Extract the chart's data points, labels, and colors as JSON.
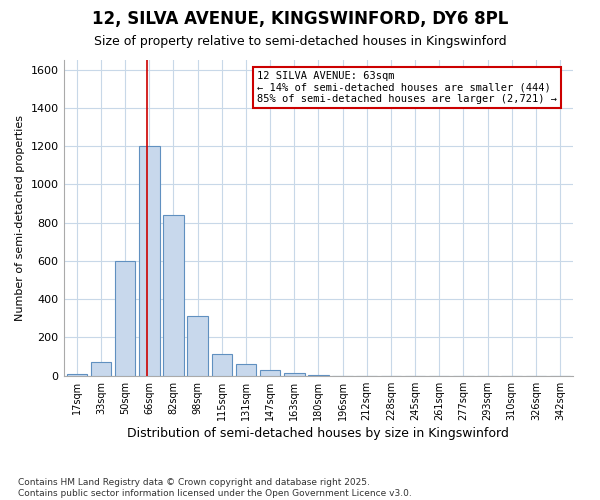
{
  "title1": "12, SILVA AVENUE, KINGSWINFORD, DY6 8PL",
  "title2": "Size of property relative to semi-detached houses in Kingswinford",
  "xlabel": "Distribution of semi-detached houses by size in Kingswinford",
  "ylabel": "Number of semi-detached properties",
  "footnote": "Contains HM Land Registry data © Crown copyright and database right 2025.\nContains public sector information licensed under the Open Government Licence v3.0.",
  "categories": [
    "17sqm",
    "33sqm",
    "50sqm",
    "66sqm",
    "82sqm",
    "98sqm",
    "115sqm",
    "131sqm",
    "147sqm",
    "163sqm",
    "180sqm",
    "196sqm",
    "212sqm",
    "228sqm",
    "245sqm",
    "261sqm",
    "277sqm",
    "293sqm",
    "310sqm",
    "326sqm",
    "342sqm"
  ],
  "bar_values": [
    10,
    70,
    600,
    1200,
    840,
    310,
    115,
    60,
    30,
    15,
    5,
    0,
    0,
    0,
    0,
    0,
    0,
    0,
    0,
    0,
    0
  ],
  "bar_color": "#c8d8ec",
  "bar_edge_color": "#6090c0",
  "bar_edge_width": 0.8,
  "red_line_x": 2.92,
  "annotation_title": "12 SILVA AVENUE: 63sqm",
  "annotation_line1": "← 14% of semi-detached houses are smaller (444)",
  "annotation_line2": "85% of semi-detached houses are larger (2,721) →",
  "annotation_box_color": "#ffffff",
  "annotation_box_edge": "#cc0000",
  "red_line_color": "#cc0000",
  "ylim": [
    0,
    1650
  ],
  "yticks": [
    0,
    200,
    400,
    600,
    800,
    1000,
    1200,
    1400,
    1600
  ],
  "grid_color": "#c8d8e8",
  "bg_color": "#ffffff",
  "plot_bg_color": "#ffffff"
}
